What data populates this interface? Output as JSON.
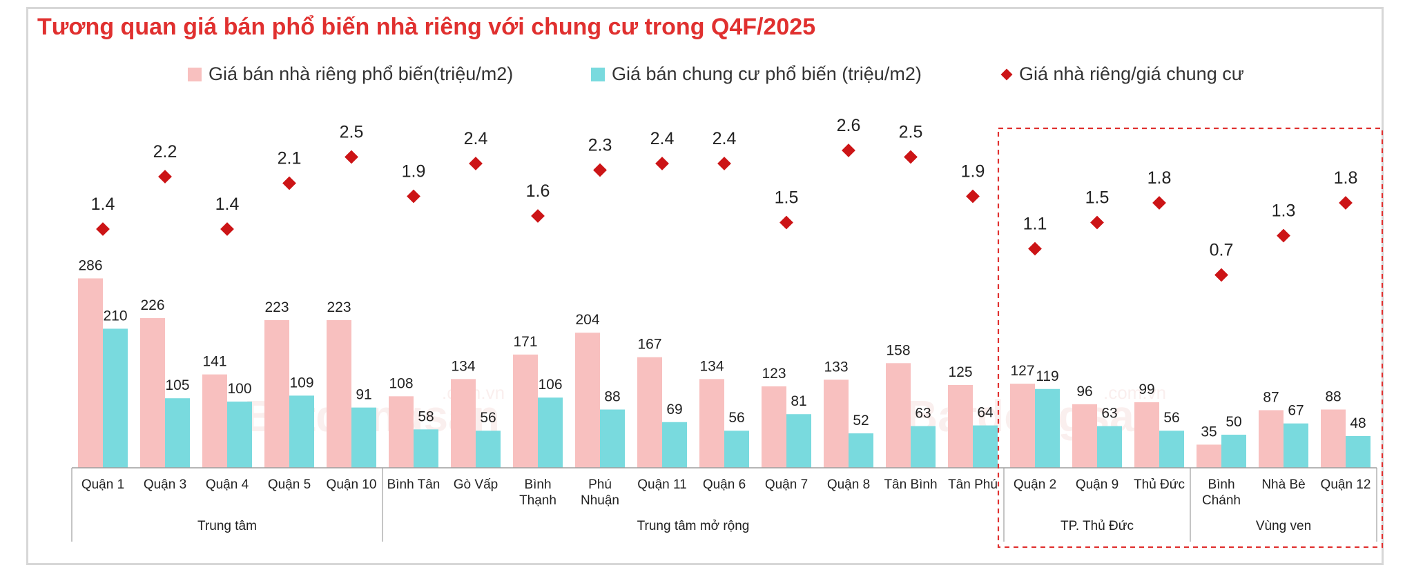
{
  "title": "Tương quan giá bán phổ biến nhà riêng với chung cư trong Q4F/2025",
  "legend": {
    "house": "Giá bán nhà riêng phổ biến(triệu/m2)",
    "apartment": "Giá bán chung cư phổ biến (triệu/m2)",
    "ratio": "Giá nhà riêng/giá chung cư"
  },
  "watermark": {
    "brand": "Batdongsan",
    "domain": ".com.vn"
  },
  "colors": {
    "house": "#f8c0bf",
    "apartment": "#79dade",
    "ratio": "#cc1416",
    "title": "#e0302f",
    "highlight_border": "#e0302f"
  },
  "chart_data": {
    "type": "bar",
    "title": "Tương quan giá bán phổ biến nhà riêng với chung cư trong Q4F/2025",
    "categories": [
      "Quận 1",
      "Quận 3",
      "Quận 4",
      "Quận 5",
      "Quận 10",
      "Bình Tân",
      "Gò Vấp",
      "Bình Thạnh",
      "Phú Nhuận",
      "Quận 11",
      "Quận 6",
      "Quận 7",
      "Quận 8",
      "Tân Bình",
      "Tân Phú",
      "Quận 2",
      "Quận 9",
      "Thủ Đức",
      "Bình Chánh",
      "Nhà Bè",
      "Quận 12"
    ],
    "groups": [
      {
        "name": "Trung tâm",
        "count": 5
      },
      {
        "name": "Trung tâm mở rộng",
        "count": 10
      },
      {
        "name": "TP. Thủ Đức",
        "count": 3
      },
      {
        "name": "Vùng ven",
        "count": 3
      }
    ],
    "highlighted_groups": [
      "TP. Thủ Đức",
      "Vùng ven"
    ],
    "series": [
      {
        "name": "Giá bán nhà riêng phổ biến(triệu/m2)",
        "type": "bar",
        "values": [
          286,
          226,
          141,
          223,
          223,
          108,
          134,
          171,
          204,
          167,
          134,
          123,
          133,
          158,
          125,
          127,
          96,
          99,
          35,
          87,
          88
        ]
      },
      {
        "name": "Giá bán chung cư phổ biến (triệu/m2)",
        "type": "bar",
        "values": [
          210,
          105,
          100,
          109,
          91,
          58,
          56,
          106,
          88,
          69,
          56,
          81,
          52,
          63,
          64,
          119,
          63,
          56,
          50,
          67,
          48
        ]
      },
      {
        "name": "Giá nhà riêng/giá chung cư",
        "type": "scatter",
        "values": [
          1.4,
          2.2,
          1.4,
          2.1,
          2.5,
          1.9,
          2.4,
          1.6,
          2.3,
          2.4,
          2.4,
          1.5,
          2.6,
          2.5,
          1.9,
          1.1,
          1.5,
          1.8,
          0.7,
          1.3,
          1.8
        ]
      }
    ],
    "legend_position": "top",
    "grid": false
  }
}
